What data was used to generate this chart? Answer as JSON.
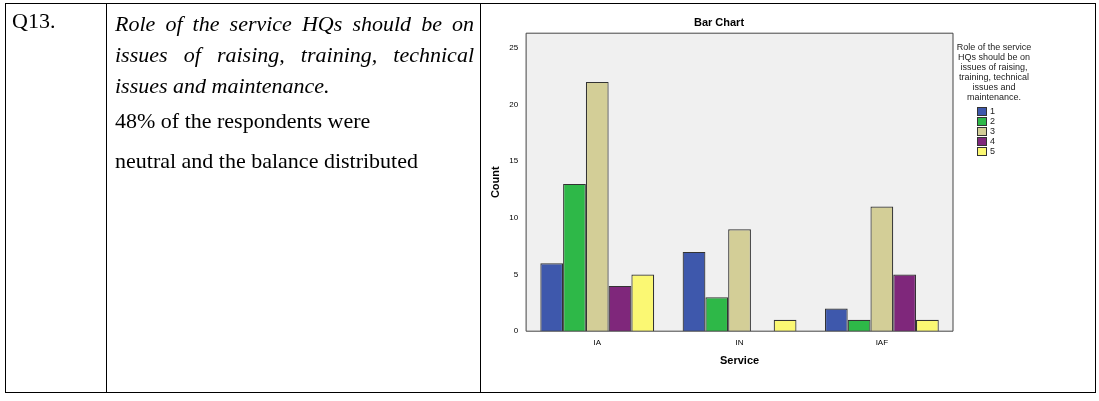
{
  "chart_data": {
    "type": "bar",
    "title": "Bar Chart",
    "xlabel": "Service",
    "ylabel": "Count",
    "legend_title": "Role of the service HQs should be on issues of raising, training, technical issues and maintenance.",
    "categories": [
      "IA",
      "IN",
      "IAF"
    ],
    "series": [
      {
        "name": "1",
        "color": "#3e58ac",
        "values": [
          6,
          7,
          2
        ]
      },
      {
        "name": "2",
        "color": "#2eb848",
        "values": [
          13,
          3,
          1
        ]
      },
      {
        "name": "3",
        "color": "#d3ce97",
        "values": [
          22,
          9,
          11
        ]
      },
      {
        "name": "4",
        "color": "#7f277b",
        "values": [
          4,
          0,
          5
        ]
      },
      {
        "name": "5",
        "color": "#fbf873",
        "values": [
          5,
          1,
          1
        ]
      }
    ],
    "ylim": [
      0,
      26.3
    ],
    "yticks": [
      0,
      5,
      10,
      15,
      20,
      25
    ],
    "grid": false,
    "legend": "right",
    "annotations": [
      "Q13.",
      "Role of the service HQs should be on issues of raising, training, technical issues and maintenance.",
      "48% of the respondents were neutral and the balance distributed"
    ]
  }
}
